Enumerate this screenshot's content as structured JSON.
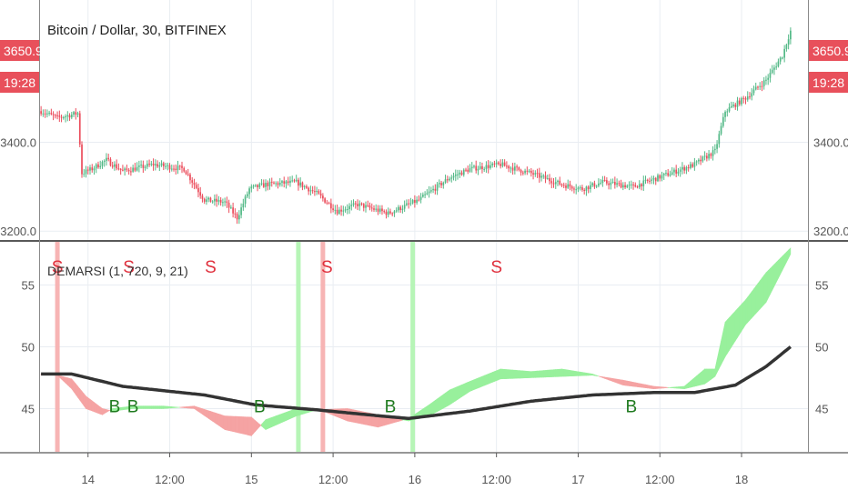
{
  "chart_data": [
    {
      "type": "candlestick",
      "title": "Bitcoin / Dollar, 30, BITFINEX",
      "ylim": [
        3180,
        3720
      ],
      "y_ticks": [
        3200.0,
        3400.0
      ],
      "y_tick_labels": [
        "3200.0",
        "3400.0"
      ],
      "price_badge": {
        "value": "3650.9",
        "countdown": "19:28",
        "color": "#e8505b"
      },
      "up_color": "#53b987",
      "down_color": "#eb4d5c",
      "close_anchors": [
        [
          0,
          3470
        ],
        [
          8,
          3455
        ],
        [
          18,
          3465
        ],
        [
          20,
          3330
        ],
        [
          25,
          3340
        ],
        [
          32,
          3360
        ],
        [
          40,
          3335
        ],
        [
          55,
          3350
        ],
        [
          70,
          3340
        ],
        [
          80,
          3270
        ],
        [
          90,
          3265
        ],
        [
          96,
          3230
        ],
        [
          102,
          3295
        ],
        [
          110,
          3305
        ],
        [
          125,
          3310
        ],
        [
          135,
          3285
        ],
        [
          145,
          3245
        ],
        [
          155,
          3260
        ],
        [
          170,
          3240
        ],
        [
          185,
          3270
        ],
        [
          200,
          3320
        ],
        [
          210,
          3340
        ],
        [
          225,
          3350
        ],
        [
          240,
          3330
        ],
        [
          255,
          3305
        ],
        [
          265,
          3295
        ],
        [
          275,
          3310
        ],
        [
          290,
          3300
        ],
        [
          305,
          3325
        ],
        [
          320,
          3350
        ],
        [
          330,
          3380
        ],
        [
          335,
          3470
        ],
        [
          345,
          3500
        ],
        [
          355,
          3540
        ],
        [
          363,
          3595
        ],
        [
          367,
          3650.9
        ]
      ]
    },
    {
      "type": "line",
      "title": "DEMARSI (1, 720, 9, 21)",
      "ylim": [
        41.5,
        58.5
      ],
      "y_ticks": [
        45,
        50,
        55
      ],
      "y_tick_labels": [
        "45",
        "50",
        "55"
      ],
      "series": [
        {
          "role": "long average",
          "color": "#333333",
          "points": [
            [
              0,
              47.8
            ],
            [
              15,
              47.8
            ],
            [
              40,
              46.8
            ],
            [
              80,
              46.1
            ],
            [
              105,
              45.3
            ],
            [
              135,
              44.9
            ],
            [
              160,
              44.5
            ],
            [
              180,
              44.2
            ],
            [
              210,
              44.8
            ],
            [
              240,
              45.6
            ],
            [
              270,
              46.1
            ],
            [
              300,
              46.3
            ],
            [
              320,
              46.3
            ],
            [
              340,
              46.9
            ],
            [
              355,
              48.4
            ],
            [
              367,
              50.0
            ]
          ]
        },
        {
          "role": "fast / slow band",
          "fast": [
            [
              0,
              47.7
            ],
            [
              8,
              47.7
            ],
            [
              15,
              46.6
            ],
            [
              22,
              45.0
            ],
            [
              30,
              44.5
            ],
            [
              35,
              45.0
            ],
            [
              45,
              45.2
            ],
            [
              60,
              45.2
            ],
            [
              75,
              45.0
            ],
            [
              90,
              43.3
            ],
            [
              103,
              42.8
            ],
            [
              110,
              44.1
            ],
            [
              125,
              45.0
            ],
            [
              135,
              45.0
            ],
            [
              150,
              44.0
            ],
            [
              165,
              43.5
            ],
            [
              180,
              44.2
            ],
            [
              190,
              45.3
            ],
            [
              200,
              46.5
            ],
            [
              210,
              47.2
            ],
            [
              225,
              48.2
            ],
            [
              240,
              48.0
            ],
            [
              255,
              48.2
            ],
            [
              270,
              47.8
            ],
            [
              285,
              46.9
            ],
            [
              300,
              46.6
            ],
            [
              315,
              46.8
            ],
            [
              325,
              48.2
            ],
            [
              330,
              48.2
            ],
            [
              335,
              52.0
            ],
            [
              345,
              53.8
            ],
            [
              355,
              56.0
            ],
            [
              367,
              58.0
            ]
          ],
          "slow": [
            [
              0,
              47.8
            ],
            [
              8,
              47.7
            ],
            [
              15,
              47.4
            ],
            [
              22,
              46.0
            ],
            [
              30,
              45.0
            ],
            [
              35,
              44.8
            ],
            [
              45,
              45.0
            ],
            [
              60,
              45.0
            ],
            [
              75,
              45.2
            ],
            [
              90,
              44.4
            ],
            [
              103,
              44.3
            ],
            [
              110,
              43.3
            ],
            [
              125,
              44.4
            ],
            [
              135,
              44.9
            ],
            [
              150,
              45.0
            ],
            [
              165,
              44.5
            ],
            [
              180,
              44.0
            ],
            [
              190,
              44.4
            ],
            [
              200,
              45.3
            ],
            [
              210,
              46.4
            ],
            [
              225,
              47.4
            ],
            [
              240,
              47.5
            ],
            [
              255,
              47.6
            ],
            [
              270,
              47.7
            ],
            [
              285,
              47.3
            ],
            [
              300,
              46.8
            ],
            [
              315,
              46.6
            ],
            [
              325,
              47.0
            ],
            [
              330,
              47.6
            ],
            [
              335,
              49.2
            ],
            [
              345,
              51.8
            ],
            [
              355,
              53.6
            ],
            [
              367,
              57.5
            ]
          ],
          "up_fill": "#98f09c",
          "down_fill": "#f5a3a3"
        }
      ],
      "signals": [
        {
          "label": "S",
          "bar": 8,
          "level": 56.0,
          "color": "#e0303d"
        },
        {
          "label": "S",
          "bar": 43,
          "level": 56.0,
          "color": "#e0303d"
        },
        {
          "label": "S",
          "bar": 83,
          "level": 56.0,
          "color": "#e0303d"
        },
        {
          "label": "S",
          "bar": 140,
          "level": 56.0,
          "color": "#e0303d"
        },
        {
          "label": "S",
          "bar": 223,
          "level": 56.0,
          "color": "#e0303d"
        },
        {
          "label": "B",
          "bar": 36,
          "level": 44.7,
          "color": "#1f7a1f"
        },
        {
          "label": "B",
          "bar": 45,
          "level": 44.7,
          "color": "#1f7a1f"
        },
        {
          "label": "B",
          "bar": 107,
          "level": 44.7,
          "color": "#1f7a1f"
        },
        {
          "label": "B",
          "bar": 171,
          "level": 44.7,
          "color": "#1f7a1f"
        },
        {
          "label": "B",
          "bar": 289,
          "level": 44.7,
          "color": "#1f7a1f"
        }
      ],
      "highlight_bars": [
        {
          "bar": 8,
          "color": "#f7b4b4"
        },
        {
          "bar": 126,
          "color": "#b7f5b7"
        },
        {
          "bar": 138,
          "color": "#f7b4b4"
        },
        {
          "bar": 182,
          "color": "#b7f5b7"
        }
      ]
    }
  ],
  "x_axis": {
    "bar_count": 368,
    "ticks": [
      {
        "bar": 23,
        "label": "14"
      },
      {
        "bar": 63,
        "label": "12:00"
      },
      {
        "bar": 103,
        "label": "15"
      },
      {
        "bar": 143,
        "label": "12:00"
      },
      {
        "bar": 183,
        "label": "16"
      },
      {
        "bar": 223,
        "label": "12:00"
      },
      {
        "bar": 263,
        "label": "17"
      },
      {
        "bar": 303,
        "label": "12:00"
      },
      {
        "bar": 343,
        "label": "18"
      }
    ]
  }
}
